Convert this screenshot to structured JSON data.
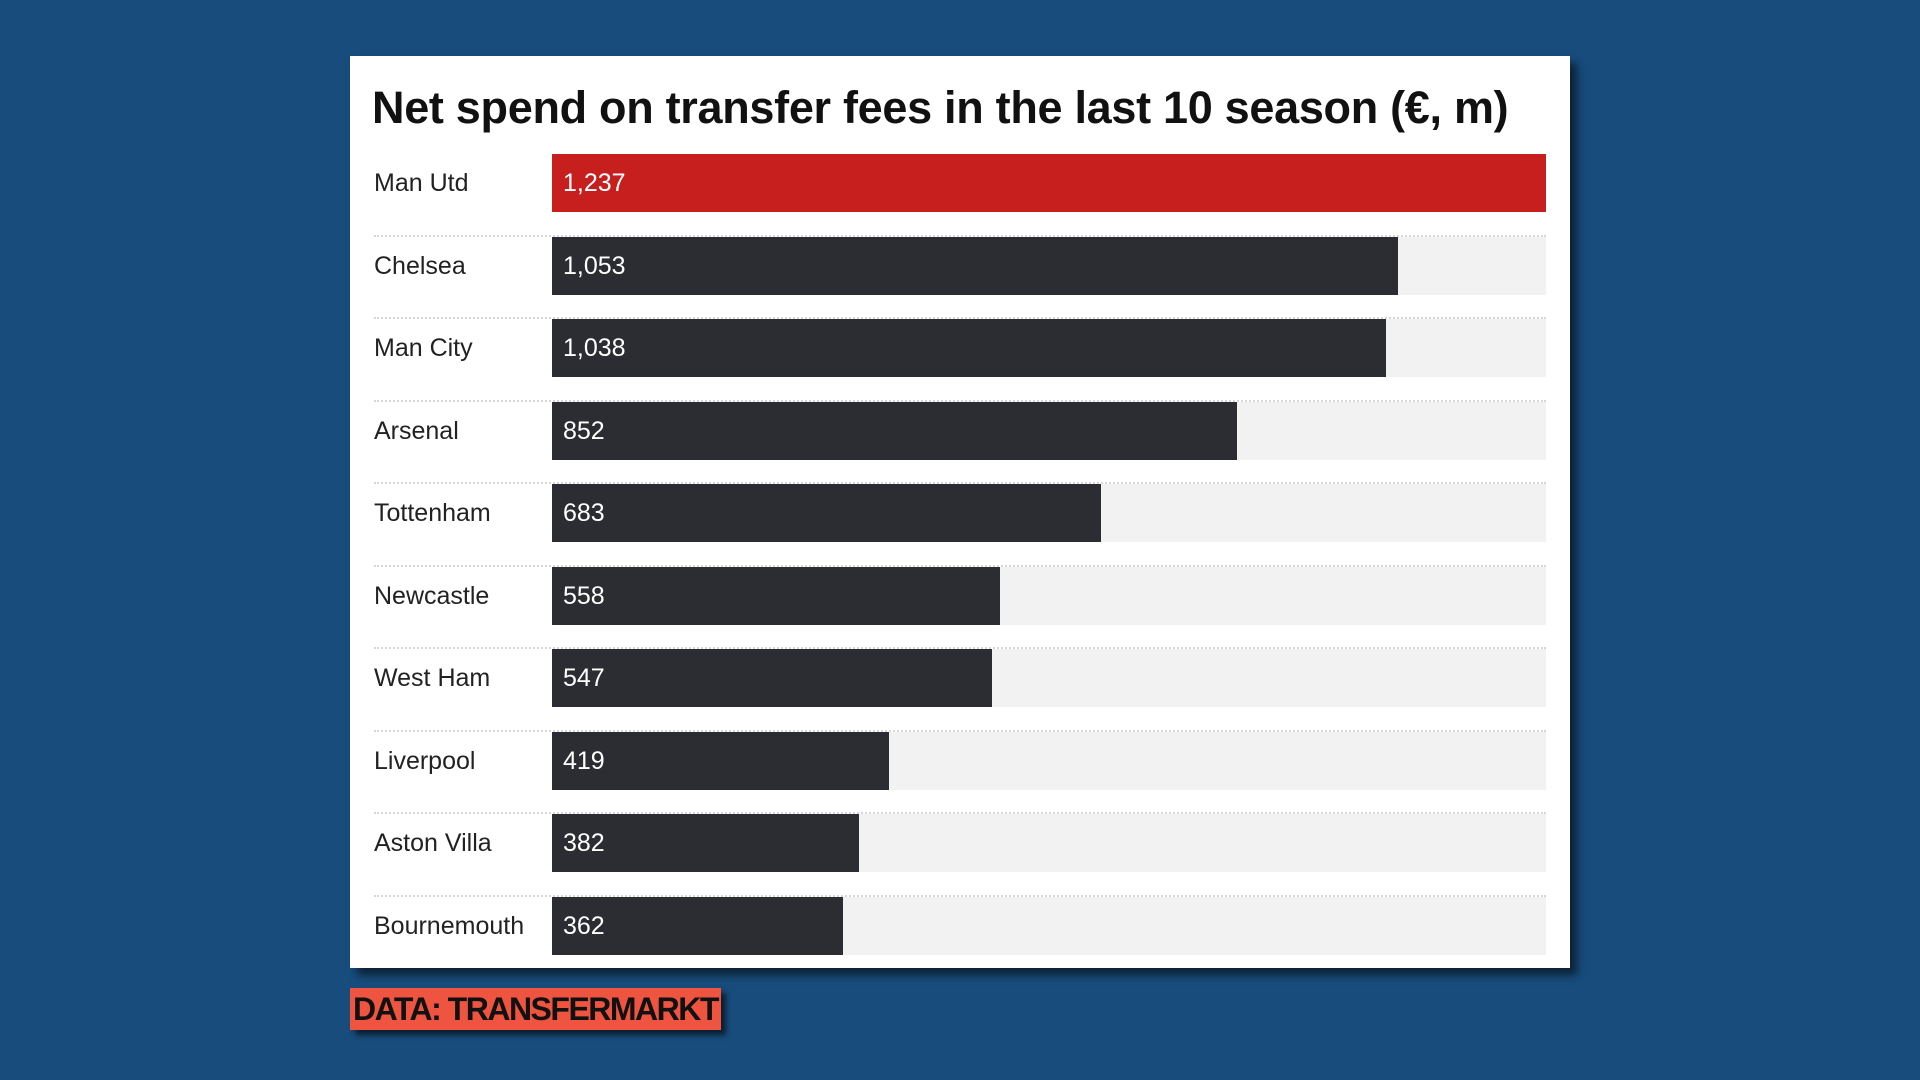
{
  "chart_data": {
    "type": "bar",
    "orientation": "horizontal",
    "title": "Net spend on transfer fees in the last 10 season (€, m)",
    "categories": [
      "Man Utd",
      "Chelsea",
      "Man City",
      "Arsenal",
      "Tottenham",
      "Newcastle",
      "West Ham",
      "Liverpool",
      "Aston Villa",
      "Bournemouth"
    ],
    "values": [
      1237,
      1053,
      1038,
      852,
      683,
      558,
      547,
      419,
      382,
      362
    ],
    "value_labels": [
      "1,237",
      "1,053",
      "1,038",
      "852",
      "683",
      "558",
      "547",
      "419",
      "382",
      "362"
    ],
    "xlim": [
      0,
      1237
    ],
    "grid": false,
    "colors": {
      "highlight": "#c71e1e",
      "bar": "#2c2d32",
      "track": "#f2f2f2",
      "background": "#184c7c",
      "source_badge": "#ee5440"
    }
  },
  "source": "DATA: TRANSFERMARKT"
}
